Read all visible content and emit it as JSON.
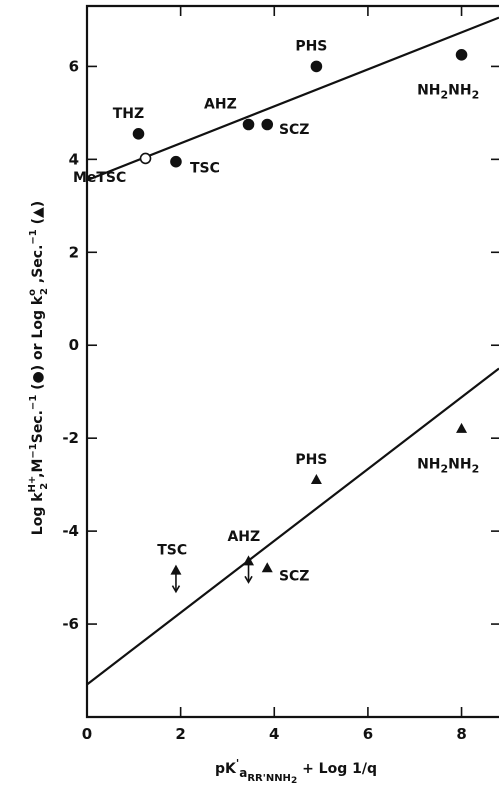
{
  "chart_data": {
    "type": "scatter",
    "xlim": [
      0,
      8.8
    ],
    "ylim": [
      -8,
      7.3
    ],
    "xticks": [
      0,
      2,
      4,
      6,
      8
    ],
    "yticks": [
      -6,
      -4,
      -2,
      0,
      2,
      4,
      6
    ],
    "grid": false,
    "xlabel": {
      "a": "pK",
      "b": "'",
      "c": "a",
      "d": "RR'NNH",
      "e": "2",
      "f": " + Log 1/q"
    },
    "ylabel": {
      "a": "Log k",
      "b": "H+",
      "c": "2",
      "d": " ,M",
      "e": "−1",
      "f": "Sec.",
      "g": "−1",
      "h": " (●) or Log k",
      "i": "o",
      "j": "2",
      "k": " ,Sec.",
      "l": "−1",
      "m": " (▲)"
    },
    "series": [
      {
        "marker": "circle",
        "points": [
          {
            "x": 1.1,
            "y": 4.55,
            "label": "THZ",
            "lx": -0.55,
            "ly": 0.45
          },
          {
            "x": 1.25,
            "y": 4.02,
            "label": "MeTSC",
            "open": true,
            "lx": -1.55,
            "ly": -0.4
          },
          {
            "x": 1.9,
            "y": 3.95,
            "label": "TSC",
            "lx": 0.3,
            "ly": -0.12
          },
          {
            "x": 3.45,
            "y": 4.75,
            "label": "AHZ",
            "lx": -0.95,
            "ly": 0.45
          },
          {
            "x": 3.85,
            "y": 4.75,
            "label": "SCZ",
            "lx": 0.25,
            "ly": -0.1
          },
          {
            "x": 4.9,
            "y": 6.0,
            "label": "PHS",
            "lx": -0.45,
            "ly": 0.45
          },
          {
            "x": 8.0,
            "y": 6.25,
            "label": "NH2NH2",
            "lx": -0.95,
            "ly": -0.75
          }
        ],
        "fit": {
          "x0": 0,
          "y0": 3.55,
          "x1": 8.8,
          "y1": 7.05
        }
      },
      {
        "marker": "triangle",
        "points": [
          {
            "x": 1.9,
            "y": -4.85,
            "label": "TSC",
            "arrow": true,
            "lx": -0.4,
            "ly": 0.45
          },
          {
            "x": 3.45,
            "y": -4.65,
            "label": "AHZ",
            "arrow": true,
            "lx": -0.45,
            "ly": 0.55
          },
          {
            "x": 3.85,
            "y": -4.8,
            "label": "SCZ",
            "lx": 0.25,
            "ly": -0.15
          },
          {
            "x": 4.9,
            "y": -2.9,
            "label": "PHS",
            "lx": -0.45,
            "ly": 0.45
          },
          {
            "x": 8.0,
            "y": -1.8,
            "label": "NH2NH2",
            "lx": -0.95,
            "ly": -0.75
          }
        ],
        "fit": {
          "x0": 0,
          "y0": -7.3,
          "x1": 8.8,
          "y1": -0.5
        }
      }
    ]
  }
}
